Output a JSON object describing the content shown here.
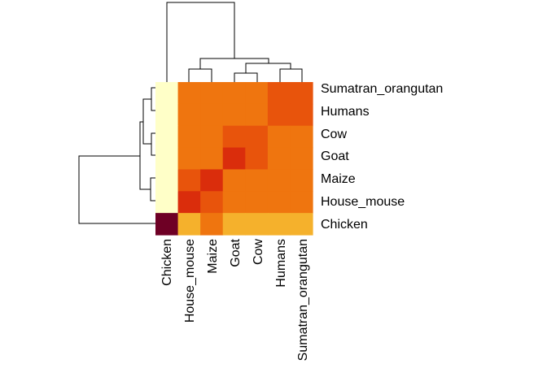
{
  "chart_data": {
    "type": "heatmap",
    "title": "",
    "xlabel": "",
    "ylabel": "",
    "rows": [
      "Sumatran_orangutan",
      "Humans",
      "Cow",
      "Goat",
      "Maize",
      "House_mouse",
      "Chicken"
    ],
    "columns": [
      "Chicken",
      "House_mouse",
      "Maize",
      "Goat",
      "Cow",
      "Humans",
      "Sumatran_orangutan"
    ],
    "color_levels": [
      "#ffffc8",
      "#f5b12c",
      "#ef750f",
      "#e8540c",
      "#da2d0c",
      "#6e0025"
    ],
    "matrix": [
      [
        0,
        2,
        2,
        2,
        2,
        3,
        3
      ],
      [
        0,
        2,
        2,
        2,
        2,
        3,
        3
      ],
      [
        0,
        2,
        2,
        3,
        3,
        2,
        2
      ],
      [
        0,
        2,
        2,
        4,
        3,
        2,
        2
      ],
      [
        0,
        3,
        4,
        2,
        2,
        2,
        2
      ],
      [
        0,
        4,
        3,
        2,
        2,
        2,
        2
      ],
      [
        5,
        1,
        2,
        1,
        1,
        1,
        1
      ]
    ],
    "row_dendrogram": true,
    "column_dendrogram": true,
    "legend": "none"
  }
}
